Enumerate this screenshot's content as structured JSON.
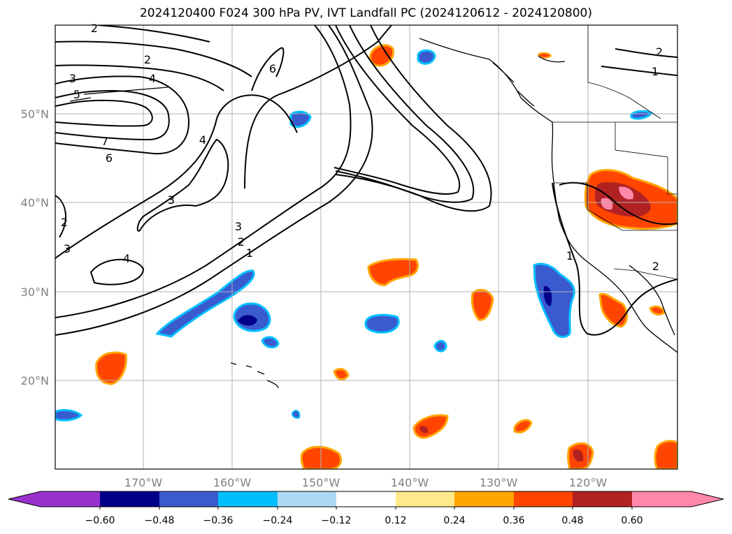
{
  "title": "2024120400 F024 300 hPa PV, IVT Landfall PC (2024120612 - 2024120800)",
  "map": {
    "lon_labels": [
      "170°W",
      "160°W",
      "150°W",
      "140°W",
      "130°W",
      "120°W"
    ],
    "lat_labels": [
      "50°N",
      "40°N",
      "30°N",
      "20°N"
    ],
    "pv_contour_labels": [
      "2",
      "2",
      "3",
      "4",
      "5",
      "6",
      "7",
      "6",
      "4",
      "3",
      "2",
      "3",
      "4",
      "3",
      "2",
      "1",
      "2",
      "1",
      "1",
      "2"
    ],
    "gridlines": true
  },
  "colorbar": {
    "ticks": [
      "−0.60",
      "−0.48",
      "−0.36",
      "−0.24",
      "−0.12",
      "0.12",
      "0.24",
      "0.36",
      "0.48",
      "0.60"
    ],
    "colors": [
      "#9932cc",
      "#00008b",
      "#3a5bd0",
      "#00bfff",
      "#add8f5",
      "#ffffff",
      "#ffe98a",
      "#ffa500",
      "#ff4500",
      "#b22222",
      "#ff88aa"
    ],
    "extend": "both"
  }
}
